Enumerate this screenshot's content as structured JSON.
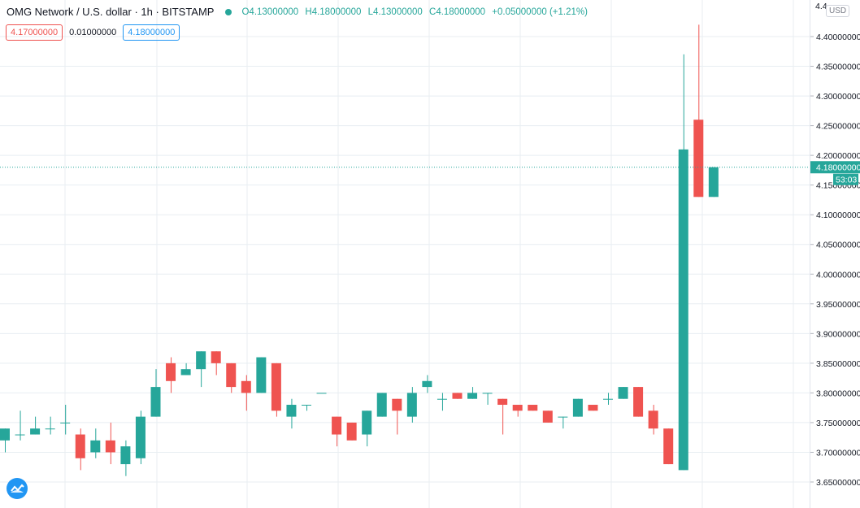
{
  "header": {
    "symbol": "OMG Network / U.S. dollar · 1h · BITSTAMP",
    "open": "O4.13000000",
    "high": "H4.18000000",
    "low": "L4.13000000",
    "close": "C4.18000000",
    "change": "+0.05000000 (+1.21%)"
  },
  "quotes": {
    "bid": "4.17000000",
    "spread": "0.01000000",
    "ask": "4.18000000"
  },
  "axis": {
    "currency": "USD",
    "last_price": "4.18000000",
    "countdown": "53:03",
    "top_tick_partial": "4.4"
  },
  "colors": {
    "up": "#26a69a",
    "down": "#ef5350",
    "grid": "#e8eef2",
    "ask": "#2196f3",
    "bid": "#ef5350"
  },
  "chart_data": {
    "type": "candlestick",
    "title": "OMG Network / U.S. dollar · 1h · BITSTAMP",
    "ylim": [
      3.63,
      4.44
    ],
    "y_ticks": [
      "3.65000000",
      "3.70000000",
      "3.75000000",
      "3.80000000",
      "3.85000000",
      "3.90000000",
      "3.95000000",
      "4.00000000",
      "4.05000000",
      "4.10000000",
      "4.15000000",
      "4.20000000",
      "4.25000000",
      "4.30000000",
      "4.35000000",
      "4.40000000"
    ],
    "last_price": 4.18,
    "grid": true,
    "candles": [
      {
        "o": 3.72,
        "h": 3.74,
        "l": 3.7,
        "c": 3.74
      },
      {
        "o": 3.73,
        "h": 3.77,
        "l": 3.72,
        "c": 3.73
      },
      {
        "o": 3.73,
        "h": 3.76,
        "l": 3.73,
        "c": 3.74
      },
      {
        "o": 3.74,
        "h": 3.76,
        "l": 3.73,
        "c": 3.74
      },
      {
        "o": 3.75,
        "h": 3.78,
        "l": 3.73,
        "c": 3.75
      },
      {
        "o": 3.73,
        "h": 3.74,
        "l": 3.67,
        "c": 3.69
      },
      {
        "o": 3.7,
        "h": 3.74,
        "l": 3.69,
        "c": 3.72
      },
      {
        "o": 3.72,
        "h": 3.75,
        "l": 3.68,
        "c": 3.7
      },
      {
        "o": 3.68,
        "h": 3.72,
        "l": 3.66,
        "c": 3.71
      },
      {
        "o": 3.69,
        "h": 3.77,
        "l": 3.68,
        "c": 3.76
      },
      {
        "o": 3.76,
        "h": 3.84,
        "l": 3.76,
        "c": 3.81
      },
      {
        "o": 3.85,
        "h": 3.86,
        "l": 3.8,
        "c": 3.82
      },
      {
        "o": 3.83,
        "h": 3.85,
        "l": 3.83,
        "c": 3.84
      },
      {
        "o": 3.84,
        "h": 3.87,
        "l": 3.81,
        "c": 3.87
      },
      {
        "o": 3.87,
        "h": 3.87,
        "l": 3.83,
        "c": 3.85
      },
      {
        "o": 3.85,
        "h": 3.85,
        "l": 3.8,
        "c": 3.81
      },
      {
        "o": 3.82,
        "h": 3.83,
        "l": 3.77,
        "c": 3.8
      },
      {
        "o": 3.8,
        "h": 3.86,
        "l": 3.8,
        "c": 3.86
      },
      {
        "o": 3.85,
        "h": 3.85,
        "l": 3.76,
        "c": 3.77
      },
      {
        "o": 3.76,
        "h": 3.79,
        "l": 3.74,
        "c": 3.78
      },
      {
        "o": 3.78,
        "h": 3.78,
        "l": 3.77,
        "c": 3.78
      },
      {
        "o": 3.8,
        "h": 3.8,
        "l": 3.8,
        "c": 3.8
      },
      {
        "o": 3.76,
        "h": 3.76,
        "l": 3.71,
        "c": 3.73
      },
      {
        "o": 3.75,
        "h": 3.75,
        "l": 3.72,
        "c": 3.72
      },
      {
        "o": 3.73,
        "h": 3.77,
        "l": 3.71,
        "c": 3.77
      },
      {
        "o": 3.76,
        "h": 3.8,
        "l": 3.76,
        "c": 3.8
      },
      {
        "o": 3.79,
        "h": 3.79,
        "l": 3.73,
        "c": 3.77
      },
      {
        "o": 3.76,
        "h": 3.81,
        "l": 3.75,
        "c": 3.8
      },
      {
        "o": 3.81,
        "h": 3.83,
        "l": 3.8,
        "c": 3.82
      },
      {
        "o": 3.79,
        "h": 3.8,
        "l": 3.77,
        "c": 3.79
      },
      {
        "o": 3.8,
        "h": 3.8,
        "l": 3.79,
        "c": 3.79
      },
      {
        "o": 3.79,
        "h": 3.81,
        "l": 3.79,
        "c": 3.8
      },
      {
        "o": 3.8,
        "h": 3.8,
        "l": 3.78,
        "c": 3.8
      },
      {
        "o": 3.79,
        "h": 3.79,
        "l": 3.73,
        "c": 3.78
      },
      {
        "o": 3.78,
        "h": 3.78,
        "l": 3.76,
        "c": 3.77
      },
      {
        "o": 3.78,
        "h": 3.78,
        "l": 3.77,
        "c": 3.77
      },
      {
        "o": 3.77,
        "h": 3.77,
        "l": 3.75,
        "c": 3.75
      },
      {
        "o": 3.76,
        "h": 3.76,
        "l": 3.74,
        "c": 3.76
      },
      {
        "o": 3.76,
        "h": 3.79,
        "l": 3.76,
        "c": 3.79
      },
      {
        "o": 3.78,
        "h": 3.78,
        "l": 3.77,
        "c": 3.77
      },
      {
        "o": 3.79,
        "h": 3.8,
        "l": 3.78,
        "c": 3.79
      },
      {
        "o": 3.79,
        "h": 3.81,
        "l": 3.79,
        "c": 3.81
      },
      {
        "o": 3.81,
        "h": 3.81,
        "l": 3.76,
        "c": 3.76
      },
      {
        "o": 3.77,
        "h": 3.78,
        "l": 3.73,
        "c": 3.74
      },
      {
        "o": 3.74,
        "h": 3.74,
        "l": 3.68,
        "c": 3.68
      },
      {
        "o": 3.67,
        "h": 4.37,
        "l": 3.67,
        "c": 4.21
      },
      {
        "o": 4.26,
        "h": 4.42,
        "l": 4.13,
        "c": 4.13
      },
      {
        "o": 4.13,
        "h": 4.18,
        "l": 4.13,
        "c": 4.18
      }
    ]
  }
}
